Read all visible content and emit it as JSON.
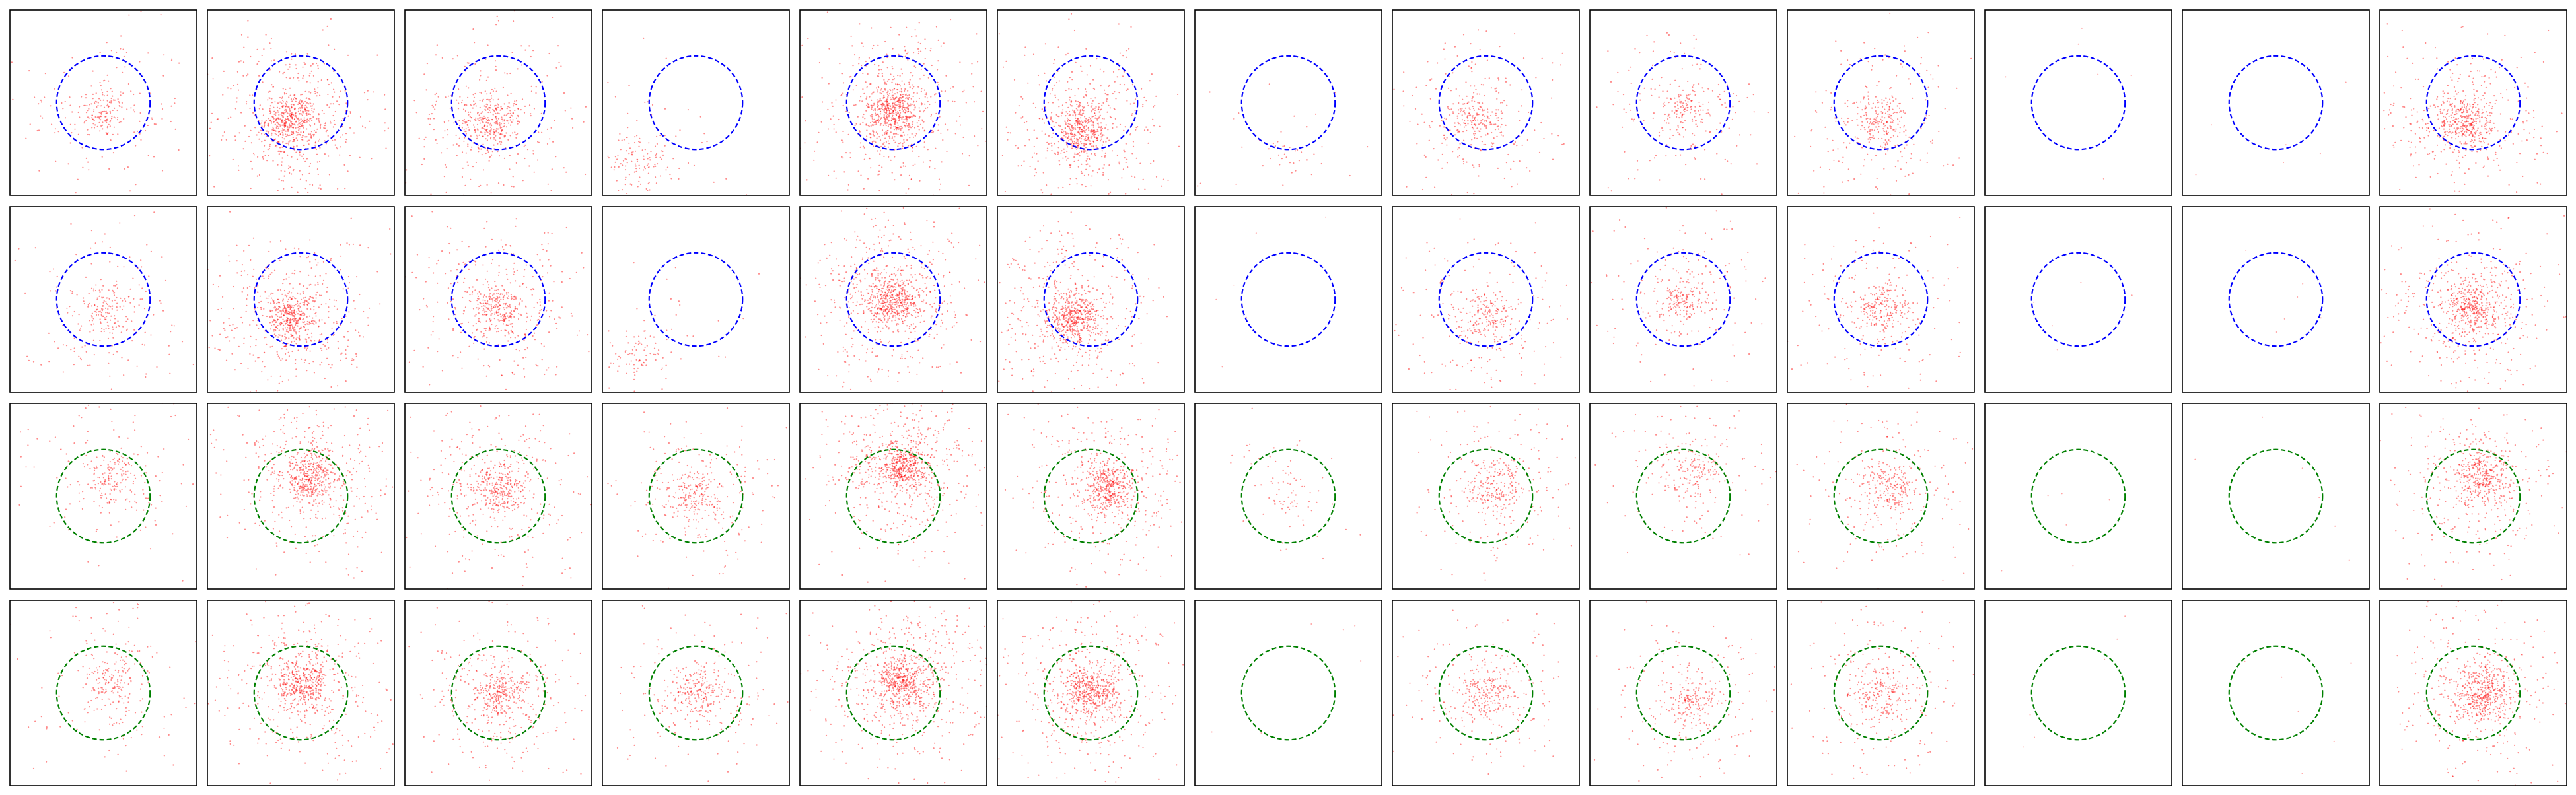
{
  "chart_data": {
    "type": "scatter",
    "title": "",
    "layout": {
      "rows": 4,
      "cols": 13
    },
    "axes_ticks": false,
    "grid": false,
    "colors": {
      "points": "#ff0000",
      "circle_rows_1_2": "#0000ff",
      "circle_rows_3_4": "#008000",
      "frame": "#000000"
    },
    "circle": {
      "center": [
        0.0,
        0.0
      ],
      "radius": 0.5,
      "linestyle": "dashed"
    },
    "xlim": [
      -1.0,
      1.0
    ],
    "ylim": [
      -1.0,
      1.0
    ],
    "panel_density": [
      [
        0.3,
        0.9,
        0.6,
        0.2,
        1.0,
        0.85,
        0.05,
        0.4,
        0.3,
        0.4,
        0.0,
        0.0,
        0.7
      ],
      [
        0.3,
        0.8,
        0.6,
        0.15,
        1.0,
        0.9,
        0.0,
        0.4,
        0.35,
        0.4,
        0.0,
        0.0,
        0.8
      ],
      [
        0.3,
        0.8,
        0.6,
        0.4,
        1.0,
        0.8,
        0.1,
        0.4,
        0.3,
        0.4,
        0.0,
        0.0,
        0.7
      ],
      [
        0.3,
        0.8,
        0.6,
        0.4,
        1.0,
        0.9,
        0.0,
        0.4,
        0.35,
        0.4,
        0.0,
        0.0,
        0.8
      ]
    ],
    "panel_cluster_center": [
      [
        [
          0.0,
          -0.1
        ],
        [
          -0.1,
          -0.2
        ],
        [
          -0.1,
          -0.2
        ],
        [
          -0.6,
          -0.6
        ],
        [
          0.0,
          -0.1
        ],
        [
          -0.1,
          -0.3
        ],
        [
          0.0,
          -0.5
        ],
        [
          -0.1,
          -0.2
        ],
        [
          0.0,
          -0.1
        ],
        [
          0.0,
          -0.2
        ],
        [
          0.0,
          0.0
        ],
        [
          0.0,
          0.0
        ],
        [
          -0.1,
          -0.2
        ]
      ],
      [
        [
          0.0,
          -0.1
        ],
        [
          -0.1,
          -0.2
        ],
        [
          0.0,
          -0.1
        ],
        [
          -0.6,
          -0.6
        ],
        [
          0.0,
          0.0
        ],
        [
          -0.2,
          -0.2
        ],
        [
          0.0,
          0.0
        ],
        [
          0.0,
          -0.2
        ],
        [
          0.0,
          0.0
        ],
        [
          0.0,
          -0.1
        ],
        [
          0.0,
          0.0
        ],
        [
          0.0,
          0.0
        ],
        [
          0.0,
          -0.1
        ]
      ],
      [
        [
          0.1,
          0.2
        ],
        [
          0.1,
          0.2
        ],
        [
          0.0,
          0.1
        ],
        [
          0.0,
          0.0
        ],
        [
          0.1,
          0.3
        ],
        [
          0.2,
          0.1
        ],
        [
          0.0,
          0.0
        ],
        [
          0.1,
          0.1
        ],
        [
          0.1,
          0.3
        ],
        [
          0.1,
          0.1
        ],
        [
          0.0,
          0.0
        ],
        [
          0.0,
          0.0
        ],
        [
          0.1,
          0.2
        ]
      ],
      [
        [
          0.1,
          0.1
        ],
        [
          0.0,
          0.1
        ],
        [
          0.0,
          0.0
        ],
        [
          0.0,
          0.0
        ],
        [
          0.1,
          0.1
        ],
        [
          0.0,
          0.0
        ],
        [
          0.0,
          0.0
        ],
        [
          0.0,
          0.0
        ],
        [
          0.1,
          -0.1
        ],
        [
          0.0,
          0.0
        ],
        [
          0.0,
          0.0
        ],
        [
          0.0,
          0.0
        ],
        [
          0.1,
          0.0
        ]
      ]
    ]
  }
}
